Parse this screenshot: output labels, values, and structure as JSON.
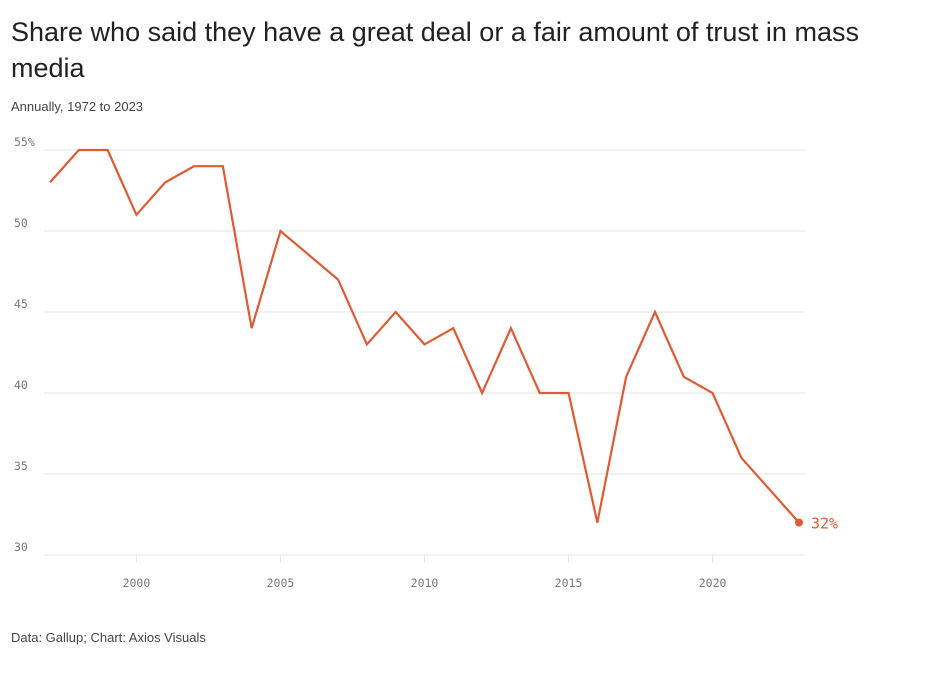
{
  "title": "Share who said they have a great deal or a fair amount of trust in mass media",
  "subtitle": "Annually, 1972 to 2023",
  "source": "Data: Gallup; Chart: Axios Visuals",
  "colors": {
    "line": "#e05a33",
    "grid": "#e6e6e6",
    "axis_text": "#777777"
  },
  "chart_data": {
    "type": "line",
    "title": "Share who said they have a great deal or a fair amount of trust in mass media",
    "subtitle": "Annually, 1972 to 2023",
    "xlabel": "",
    "ylabel": "",
    "xlim": [
      1997,
      2023
    ],
    "ylim": [
      30,
      55
    ],
    "x_ticks": [
      2000,
      2005,
      2010,
      2015,
      2020
    ],
    "y_ticks": [
      30,
      35,
      40,
      45,
      50,
      55
    ],
    "y_tick_labels": [
      "30",
      "35",
      "40",
      "45",
      "50",
      "55%"
    ],
    "grid": true,
    "legend": "none",
    "series": [
      {
        "x": [
          1997,
          1998,
          1999,
          2000,
          2001,
          2002,
          2003,
          2004,
          2005,
          2007,
          2008,
          2009,
          2010,
          2011,
          2012,
          2013,
          2014,
          2015,
          2016,
          2017,
          2018,
          2019,
          2020,
          2021,
          2023
        ],
        "values": [
          53,
          55,
          55,
          51,
          53,
          54,
          54,
          44,
          50,
          47,
          43,
          45,
          43,
          44,
          40,
          44,
          40,
          40,
          32,
          41,
          45,
          41,
          40,
          36,
          32
        ]
      }
    ],
    "annotations": [
      {
        "x": 2023,
        "y": 32,
        "text": "32%"
      }
    ]
  }
}
